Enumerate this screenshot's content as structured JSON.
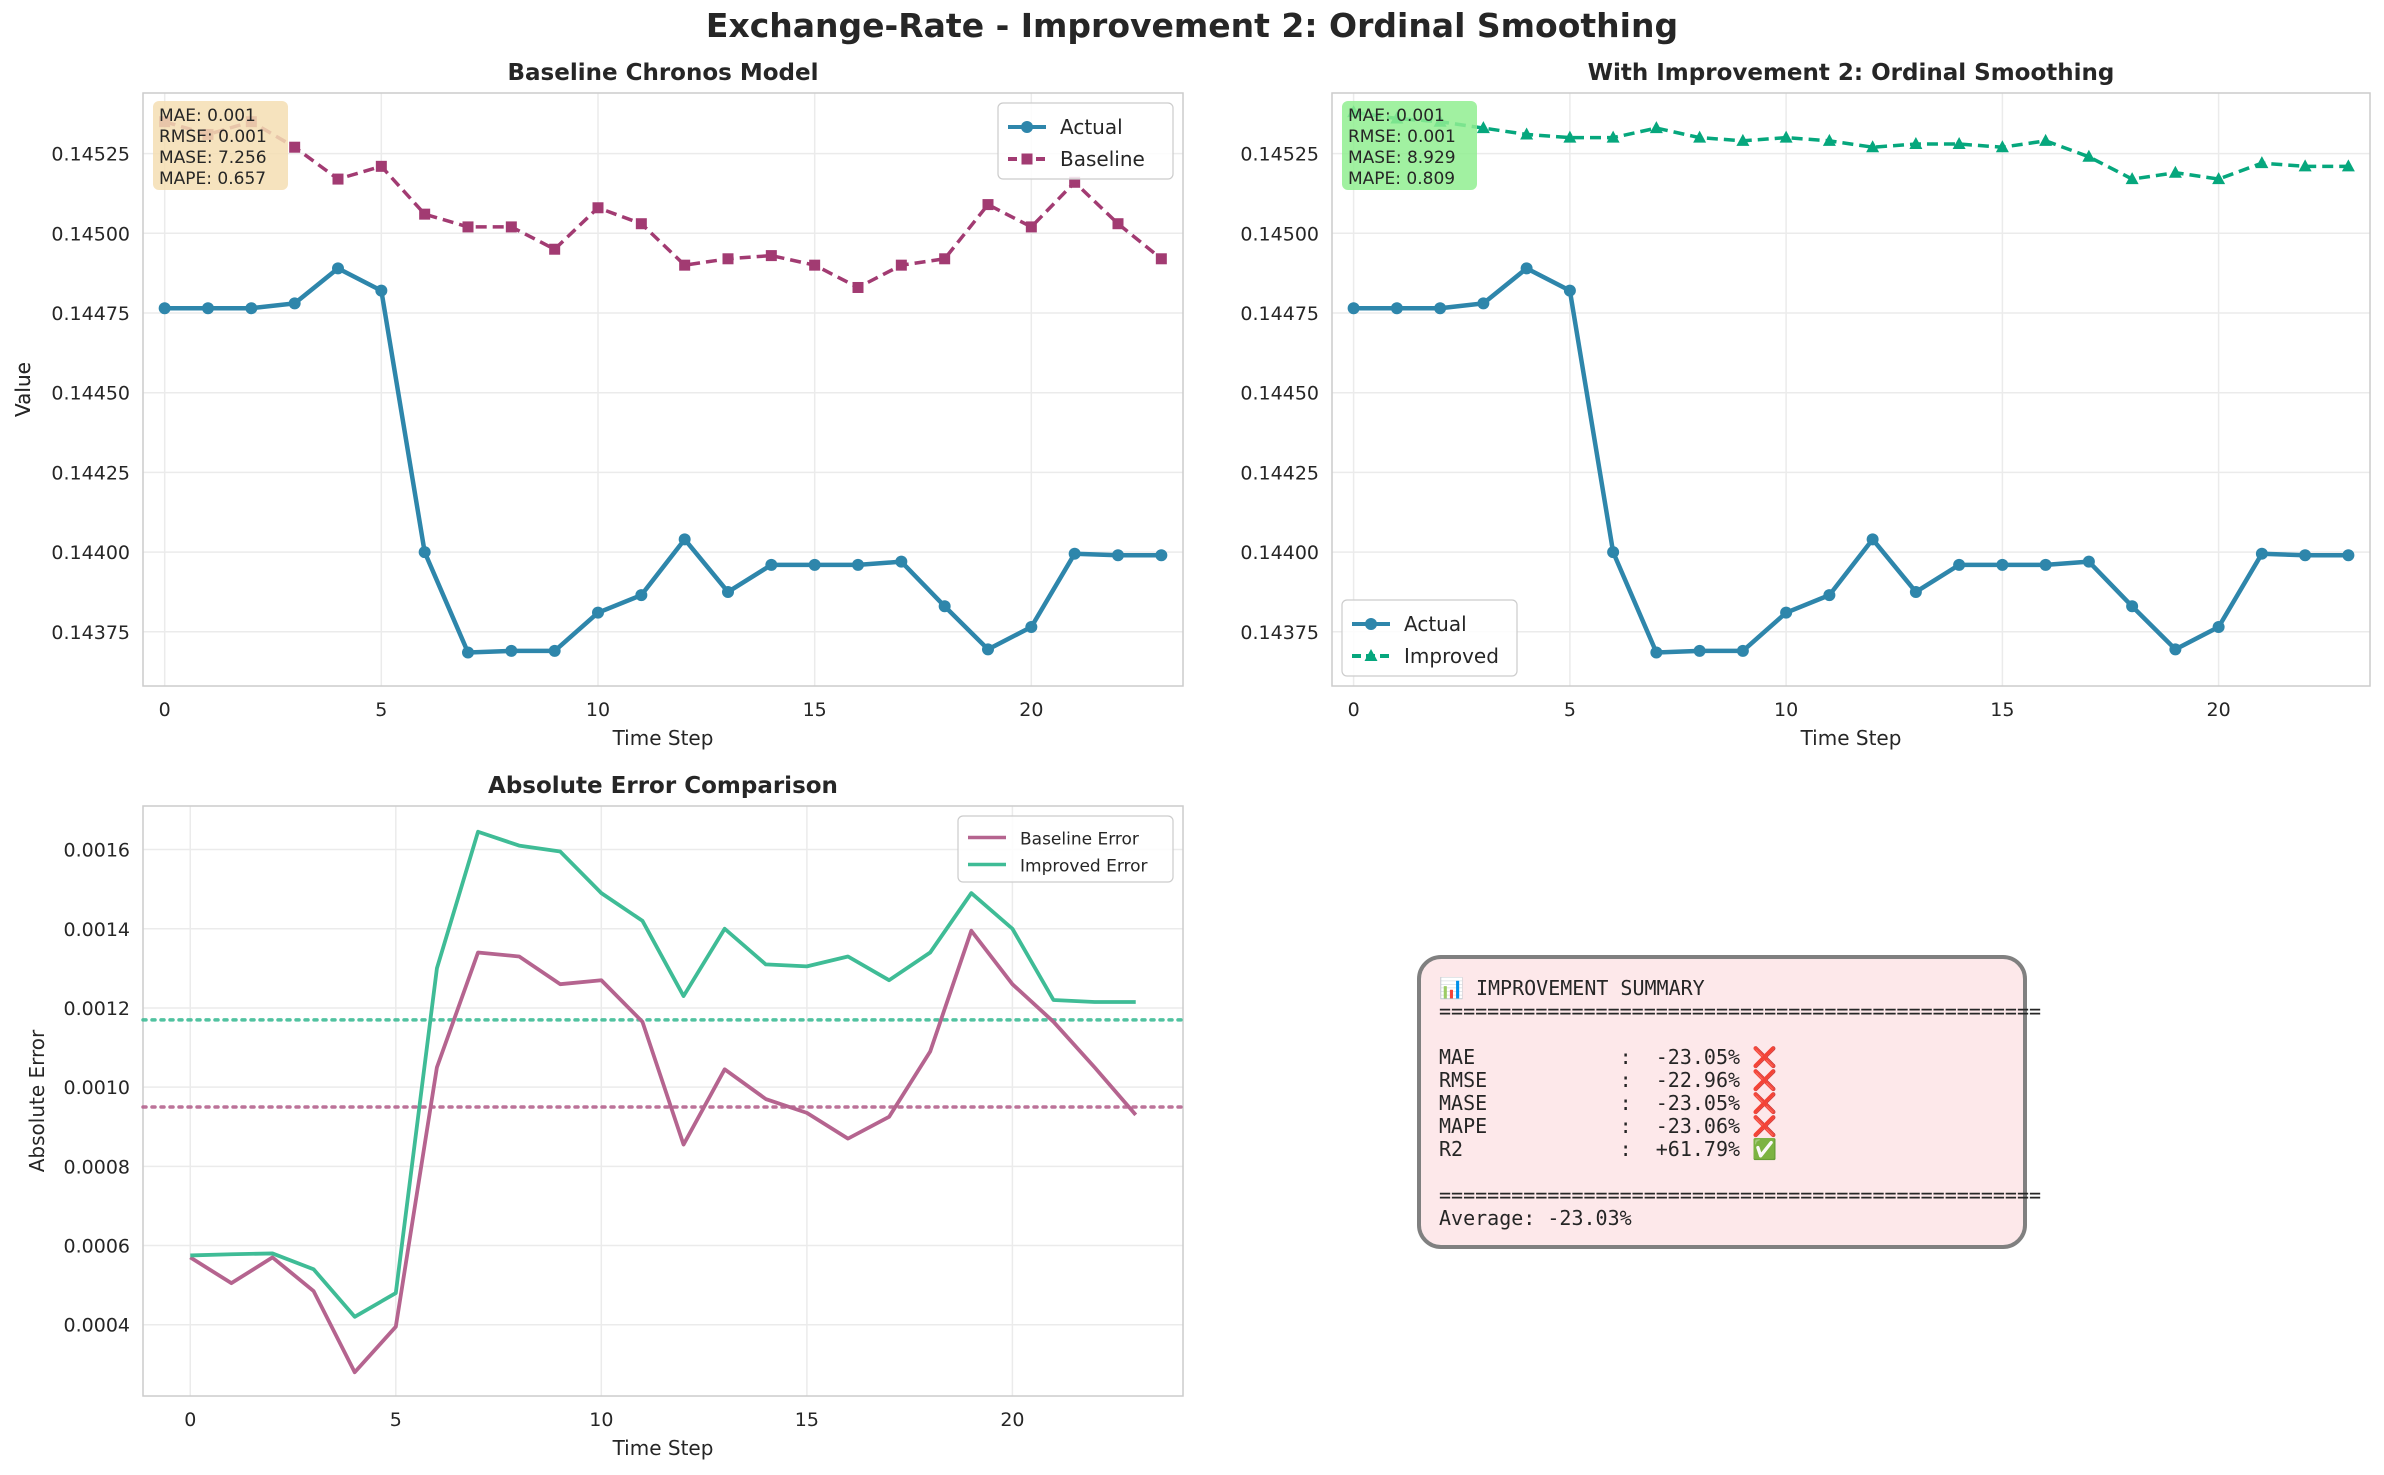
{
  "figure_title": "Exchange-Rate - Improvement 2: Ordinal Smoothing",
  "chart_data": [
    {
      "type": "line",
      "title": "Baseline Chronos Model",
      "xlabel": "Time Step",
      "ylabel": "Value",
      "xlim": [
        -0.5,
        23.5
      ],
      "ylim": [
        0.14358,
        0.14544
      ],
      "xticks": [
        0,
        5,
        10,
        15,
        20
      ],
      "yticks": [
        0.14375,
        0.144,
        0.14425,
        0.1445,
        0.14475,
        0.145,
        0.14525
      ],
      "ytick_labels": [
        "0.14375",
        "0.14400",
        "0.14425",
        "0.14450",
        "0.14475",
        "0.14500",
        "0.14525"
      ],
      "grid": true,
      "legend_position": "upper right",
      "x": [
        0,
        1,
        2,
        3,
        4,
        5,
        6,
        7,
        8,
        9,
        10,
        11,
        12,
        13,
        14,
        15,
        16,
        17,
        18,
        19,
        20,
        21,
        22,
        23
      ],
      "series": [
        {
          "name": "Actual",
          "color": "#2e86ab",
          "marker": "circle",
          "dash": "solid",
          "values": [
            0.144765,
            0.144765,
            0.144765,
            0.14478,
            0.14489,
            0.14482,
            0.144,
            0.143685,
            0.14369,
            0.14369,
            0.14381,
            0.143865,
            0.14404,
            0.143875,
            0.14396,
            0.14396,
            0.14396,
            0.14397,
            0.14383,
            0.143695,
            0.143765,
            0.143995,
            0.14399,
            0.14399
          ]
        },
        {
          "name": "Baseline",
          "color": "#a23b72",
          "marker": "square",
          "dash": "dashed",
          "values": [
            0.14535,
            0.14531,
            0.14535,
            0.14527,
            0.14517,
            0.14521,
            0.14506,
            0.14502,
            0.14502,
            0.14495,
            0.14508,
            0.14503,
            0.1449,
            0.14492,
            0.14493,
            0.1449,
            0.14483,
            0.1449,
            0.14492,
            0.14509,
            0.14502,
            0.14516,
            0.14503,
            0.14492
          ]
        }
      ],
      "metrics_box": {
        "lines": [
          "MAE: 0.001",
          "RMSE: 0.001",
          "MASE: 7.256",
          "MAPE: 0.657"
        ],
        "color": "#f5deb3"
      }
    },
    {
      "type": "line",
      "title": "With Improvement 2: Ordinal Smoothing",
      "xlabel": "Time Step",
      "ylabel": "Value",
      "xlim": [
        -0.5,
        23.5
      ],
      "ylim": [
        0.14358,
        0.14544
      ],
      "xticks": [
        0,
        5,
        10,
        15,
        20
      ],
      "yticks": [
        0.14375,
        0.144,
        0.14425,
        0.1445,
        0.14475,
        0.145,
        0.14525
      ],
      "ytick_labels": [
        "0.14375",
        "0.14400",
        "0.14425",
        "0.14450",
        "0.14475",
        "0.14500",
        "0.14525"
      ],
      "grid": true,
      "legend_position": "lower left",
      "x": [
        0,
        1,
        2,
        3,
        4,
        5,
        6,
        7,
        8,
        9,
        10,
        11,
        12,
        13,
        14,
        15,
        16,
        17,
        18,
        19,
        20,
        21,
        22,
        23
      ],
      "series": [
        {
          "name": "Actual",
          "color": "#2e86ab",
          "marker": "circle",
          "dash": "solid",
          "values": [
            0.144765,
            0.144765,
            0.144765,
            0.14478,
            0.14489,
            0.14482,
            0.144,
            0.143685,
            0.14369,
            0.14369,
            0.14381,
            0.143865,
            0.14404,
            0.143875,
            0.14396,
            0.14396,
            0.14396,
            0.14397,
            0.14383,
            0.143695,
            0.143765,
            0.143995,
            0.14399,
            0.14399
          ]
        },
        {
          "name": "Improved",
          "color": "#06a77d",
          "marker": "triangle",
          "dash": "dashed",
          "values": [
            0.14538,
            0.14536,
            0.14535,
            0.14533,
            0.14531,
            0.1453,
            0.1453,
            0.14533,
            0.1453,
            0.14529,
            0.1453,
            0.14529,
            0.14527,
            0.14528,
            0.14528,
            0.14527,
            0.14529,
            0.14524,
            0.14517,
            0.14519,
            0.14517,
            0.14522,
            0.14521,
            0.14521
          ]
        }
      ],
      "metrics_box": {
        "lines": [
          "MAE: 0.001",
          "RMSE: 0.001",
          "MASE: 8.929",
          "MAPE: 0.809"
        ],
        "color": "#90ee90"
      }
    },
    {
      "type": "line",
      "title": "Absolute Error Comparison",
      "xlabel": "Time Step",
      "ylabel": "Absolute Error",
      "xlim": [
        -1.15,
        24.15
      ],
      "ylim": [
        0.00022,
        0.00171
      ],
      "xticks": [
        0,
        5,
        10,
        15,
        20
      ],
      "yticks": [
        0.0004,
        0.0006,
        0.0008,
        0.001,
        0.0012,
        0.0014,
        0.0016
      ],
      "ytick_labels": [
        "0.0004",
        "0.0006",
        "0.0008",
        "0.0010",
        "0.0012",
        "0.0014",
        "0.0016"
      ],
      "grid": true,
      "legend_position": "upper right",
      "x": [
        0,
        1,
        2,
        3,
        4,
        5,
        6,
        7,
        8,
        9,
        10,
        11,
        12,
        13,
        14,
        15,
        16,
        17,
        18,
        19,
        20,
        21,
        22,
        23
      ],
      "series": [
        {
          "name": "Baseline Error",
          "color": "#b5648f",
          "values": [
            0.00057,
            0.000505,
            0.00057,
            0.000485,
            0.00028,
            0.000395,
            0.00105,
            0.00134,
            0.00133,
            0.00126,
            0.00127,
            0.001165,
            0.000855,
            0.001045,
            0.00097,
            0.000935,
            0.00087,
            0.000925,
            0.00109,
            0.001395,
            0.00126,
            0.001165,
            0.00105,
            0.00093
          ],
          "mean": 0.00095
        },
        {
          "name": "Improved Error",
          "color": "#3fbc96",
          "values": [
            0.000575,
            0.000578,
            0.00058,
            0.00054,
            0.00042,
            0.00048,
            0.0013,
            0.001645,
            0.00161,
            0.001595,
            0.00149,
            0.00142,
            0.00123,
            0.0014,
            0.00131,
            0.001305,
            0.00133,
            0.00127,
            0.00134,
            0.00149,
            0.0014,
            0.00122,
            0.001215,
            0.001215
          ],
          "mean": 0.00117
        }
      ]
    }
  ],
  "summary": {
    "lines": [
      "📊 IMPROVEMENT SUMMARY",
      "==================================================",
      "",
      "MAE            :  -23.05% ❌",
      "RMSE           :  -22.96% ❌",
      "MASE           :  -23.05% ❌",
      "MAPE           :  -23.06% ❌",
      "R2             :  +61.79% ✅",
      "",
      "==================================================",
      "Average: -23.03%"
    ]
  }
}
